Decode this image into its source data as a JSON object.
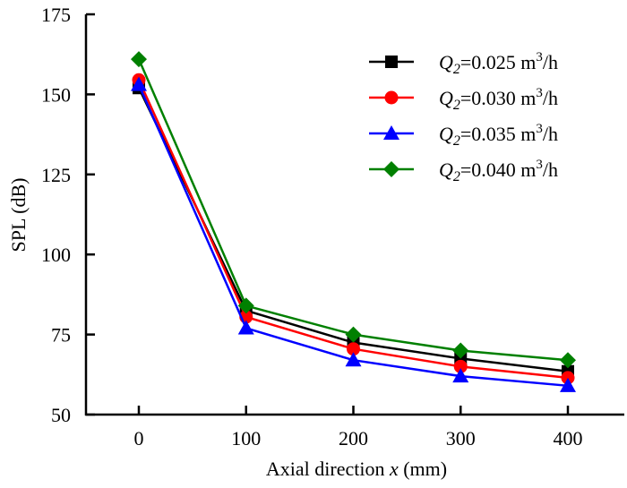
{
  "chart_data": {
    "type": "line",
    "title": "",
    "xlabel": "Axial direction x (mm)",
    "xlabel_parts": {
      "prefix": "Axial direction ",
      "var": "x",
      "suffix": " (mm)"
    },
    "ylabel": "SPL (dB)",
    "x": [
      0,
      100,
      200,
      300,
      400
    ],
    "xlim": [
      -50,
      450
    ],
    "ylim": [
      50,
      175
    ],
    "xticks": [
      0,
      100,
      200,
      300,
      400
    ],
    "xtick_labels": [
      "0",
      "100",
      "200",
      "300",
      "400"
    ],
    "yticks": [
      50,
      75,
      100,
      125,
      150,
      175
    ],
    "ytick_labels": [
      "50",
      "75",
      "100",
      "125",
      "150",
      "175"
    ],
    "grid": false,
    "legend_position": "top-right",
    "series": [
      {
        "name": "Q2=0.025 m3/h",
        "label_var": "Q",
        "label_sub": "2",
        "label_value": "=0.025 m",
        "label_sup": "3",
        "label_unit": "/h",
        "color": "#000000",
        "marker": "square",
        "values": [
          152,
          82.5,
          72.5,
          67.5,
          63.5
        ]
      },
      {
        "name": "Q2=0.030 m3/h",
        "label_var": "Q",
        "label_sub": "2",
        "label_value": "=0.030 m",
        "label_sup": "3",
        "label_unit": "/h",
        "color": "#ff0000",
        "marker": "circle",
        "values": [
          154.5,
          80.5,
          70.5,
          65,
          61.5
        ]
      },
      {
        "name": "Q2=0.035 m3/h",
        "label_var": "Q",
        "label_sub": "2",
        "label_value": "=0.035 m",
        "label_sup": "3",
        "label_unit": "/h",
        "color": "#0000ff",
        "marker": "triangle",
        "values": [
          153,
          77,
          67,
          62,
          59
        ]
      },
      {
        "name": "Q2=0.040 m3/h",
        "label_var": "Q",
        "label_sub": "2",
        "label_value": "=0.040 m",
        "label_sup": "3",
        "label_unit": "/h",
        "color": "#008000",
        "marker": "diamond",
        "values": [
          161,
          84,
          75,
          70,
          67
        ]
      }
    ]
  }
}
